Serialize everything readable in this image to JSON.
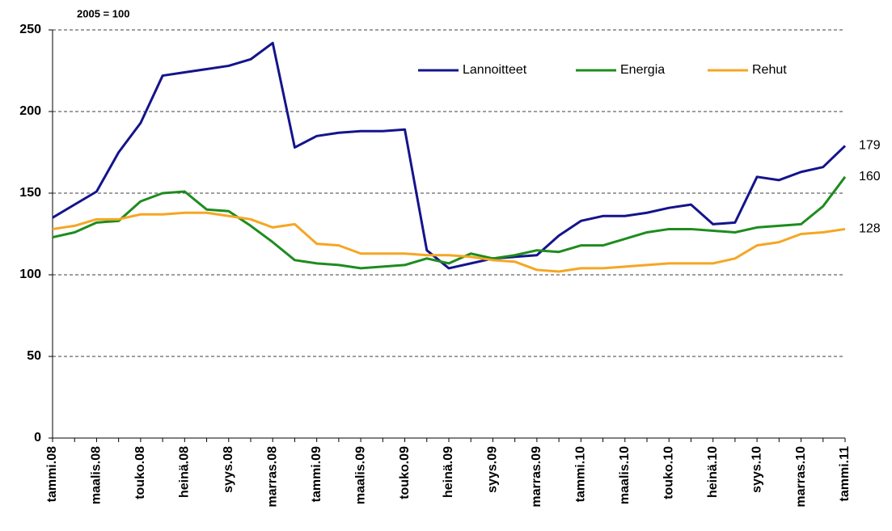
{
  "chart_data": {
    "type": "line",
    "annotation": "2005 = 100",
    "categories": [
      "tammi.08",
      null,
      "maalis.08",
      null,
      "touko.08",
      null,
      "heinä.08",
      null,
      "syys.08",
      null,
      "marras.08",
      null,
      "tammi.09",
      null,
      "maalis.09",
      null,
      "touko.09",
      null,
      "heinä.09",
      null,
      "syys.09",
      null,
      "marras.09",
      null,
      "tammi.10",
      null,
      "maalis.10",
      null,
      "touko.10",
      null,
      "heinä.10",
      null,
      "syys.10",
      null,
      "marras.10",
      null,
      "tammi.11"
    ],
    "series": [
      {
        "name": "Lannoitteet",
        "color": "#14148c",
        "values": [
          135,
          143,
          151,
          175,
          193,
          222,
          224,
          226,
          228,
          232,
          242,
          178,
          185,
          187,
          188,
          188,
          189,
          115,
          104,
          107,
          110,
          111,
          112,
          124,
          133,
          136,
          136,
          138,
          141,
          143,
          131,
          132,
          160,
          158,
          163,
          166,
          179
        ]
      },
      {
        "name": "Energia",
        "color": "#1e8c1e",
        "values": [
          123,
          126,
          132,
          133,
          145,
          150,
          151,
          140,
          139,
          130,
          120,
          109,
          107,
          106,
          104,
          105,
          106,
          110,
          107,
          113,
          110,
          112,
          115,
          114,
          118,
          118,
          122,
          126,
          128,
          128,
          127,
          126,
          129,
          130,
          131,
          142,
          160
        ]
      },
      {
        "name": "Rehut",
        "color": "#f5a623",
        "values": [
          128,
          130,
          134,
          134,
          137,
          137,
          138,
          138,
          136,
          134,
          129,
          131,
          119,
          118,
          113,
          113,
          113,
          112,
          112,
          111,
          109,
          108,
          103,
          102,
          104,
          104,
          105,
          106,
          107,
          107,
          107,
          110,
          118,
          120,
          125,
          126,
          128
        ]
      }
    ],
    "ylim": [
      0,
      250
    ],
    "yticks": [
      0,
      50,
      100,
      150,
      200,
      250
    ],
    "grid": true,
    "legend": "top"
  }
}
